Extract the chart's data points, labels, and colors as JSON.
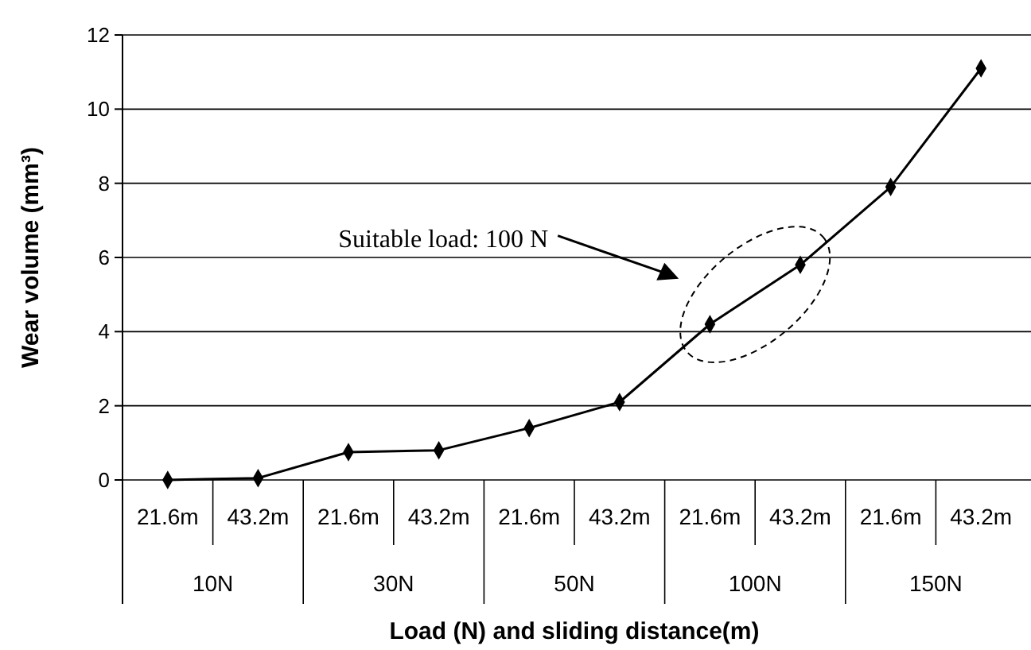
{
  "chart_data": {
    "type": "line",
    "xlabel": "Load (N) and sliding distance(m)",
    "ylabel": "Wear volume (mm³)",
    "categories": [
      "21.6m",
      "43.2m",
      "21.6m",
      "43.2m",
      "21.6m",
      "43.2m",
      "21.6m",
      "43.2m",
      "21.6m",
      "43.2m"
    ],
    "series": [
      {
        "color": "#000000",
        "values": [
          0,
          0.05,
          0.75,
          0.8,
          1.4,
          2.1,
          4.2,
          5.8,
          7.9,
          11.1
        ]
      }
    ],
    "ylim": [
      0,
      12
    ],
    "yticks": [
      0,
      2,
      4,
      6,
      8,
      10,
      12
    ],
    "grid": "y",
    "marker": "diamond",
    "line_style": "solid",
    "annotations": [
      "10N",
      "30N",
      "50N",
      "100N",
      "150N",
      "Suitable load: 100 N"
    ]
  }
}
